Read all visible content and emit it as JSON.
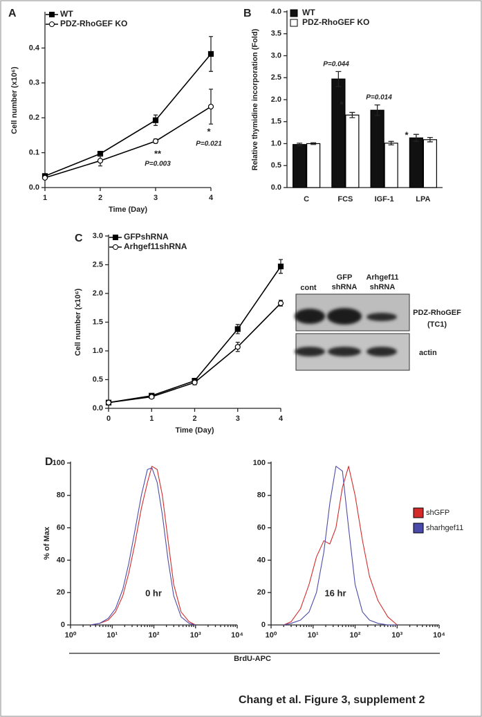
{
  "chart_data": [
    {
      "type": "line",
      "label": "A",
      "xlabel": "Time (Day)",
      "ylabel": "Cell number (x10⁶)",
      "x": [
        1,
        2,
        3,
        4
      ],
      "xlim": [
        1,
        4
      ],
      "xticks": [
        1,
        2,
        3,
        4
      ],
      "ylim": [
        0,
        0.5
      ],
      "yticks": [
        {
          "value": 0,
          "label": "0.0"
        },
        0.1,
        0.2,
        0.3,
        0.4
      ],
      "legend": "upper left",
      "series": [
        {
          "name": "WT",
          "color": "#000000",
          "marker": "square",
          "values": [
            0.033,
            0.097,
            0.193,
            0.383
          ],
          "errors": [
            0.005,
            0.006,
            0.015,
            0.05
          ]
        },
        {
          "name": "PDZ-RhoGEF KO",
          "color": "#ffffff",
          "marker": "circle",
          "values": [
            0.028,
            0.077,
            0.133,
            0.232
          ],
          "errors": [
            0.005,
            0.015,
            0.006,
            0.05
          ]
        }
      ],
      "annotations": [
        "**",
        "P=0.003",
        "*",
        "P=0.021"
      ]
    },
    {
      "type": "bar",
      "label": "B",
      "ylabel": "Relative thymidine incorporation (Fold)",
      "categories": [
        "C",
        "FCS",
        "IGF-1",
        "LPA"
      ],
      "ylim": [
        0,
        4
      ],
      "yticks": [
        {
          "value": 0,
          "label": "0.0"
        },
        0.5,
        {
          "value": 1,
          "label": "1.0"
        },
        1.5,
        {
          "value": 2,
          "label": "2.0"
        },
        2.5,
        {
          "value": 3,
          "label": "3.0"
        },
        3.5,
        {
          "value": 4,
          "label": "4.0"
        }
      ],
      "legend": "upper left",
      "series": [
        {
          "name": "WT",
          "color": "#111111",
          "values": [
            0.98,
            2.47,
            1.76,
            1.13
          ],
          "errors": [
            0.03,
            0.17,
            0.12,
            0.08
          ]
        },
        {
          "name": "PDZ-RhoGEF KO",
          "color": "#ffffff",
          "values": [
            1.0,
            1.65,
            1.01,
            1.09
          ],
          "errors": [
            0.02,
            0.06,
            0.04,
            0.05
          ]
        }
      ],
      "annotations": [
        "P=0.044",
        "*",
        "P=0.014",
        "*"
      ]
    },
    {
      "type": "line",
      "label": "C",
      "xlabel": "Time (Day)",
      "ylabel": "Cell number (x10⁶)",
      "x": [
        0,
        1,
        2,
        3,
        4
      ],
      "xlim": [
        0,
        4
      ],
      "xticks": [
        0,
        1,
        2,
        3,
        4
      ],
      "ylim": [
        0,
        3
      ],
      "yticks": [
        {
          "value": 0,
          "label": "0.0"
        },
        0.5,
        {
          "value": 1,
          "label": "1.0"
        },
        1.5,
        {
          "value": 2,
          "label": "2.0"
        },
        2.5,
        {
          "value": 3,
          "label": "3.0"
        }
      ],
      "legend": "upper left",
      "series": [
        {
          "name": "GFPshRNA",
          "color": "#000000",
          "marker": "square",
          "values": [
            0.1,
            0.22,
            0.48,
            1.38,
            2.47
          ],
          "errors": [
            0.02,
            0.03,
            0.04,
            0.08,
            0.12
          ]
        },
        {
          "name": "Arhgef11shRNA",
          "color": "#ffffff",
          "marker": "circle",
          "values": [
            0.1,
            0.2,
            0.45,
            1.07,
            1.83
          ],
          "errors": [
            0.02,
            0.02,
            0.04,
            0.08,
            0.05
          ]
        }
      ]
    },
    {
      "type": "histogram-line",
      "label": "D",
      "xlabel": "BrdU-APC",
      "ylabel": "% of Max",
      "log_x": true,
      "x": [
        3,
        5,
        8,
        12,
        18,
        25,
        35,
        50,
        70,
        90,
        120,
        160,
        220,
        300,
        450,
        700,
        1000
      ],
      "xlim": [
        1,
        10000
      ],
      "xticks": [
        {
          "value": 1,
          "label": "10⁰"
        },
        {
          "value": 10,
          "label": "10¹"
        },
        {
          "value": 100,
          "label": "10²"
        },
        {
          "value": 1000,
          "label": "10³"
        },
        {
          "value": 10000,
          "label": "10⁴"
        }
      ],
      "ylim": [
        0,
        100
      ],
      "yticks": [
        0,
        20,
        40,
        60,
        80,
        100
      ],
      "series": [
        {
          "name": "shGFP",
          "color": "#d42a2a",
          "values": [
            0,
            1,
            3,
            8,
            18,
            32,
            50,
            72,
            88,
            98,
            96,
            80,
            52,
            25,
            8,
            2,
            0
          ]
        },
        {
          "name": "sharhgef11",
          "color": "#4a4aaa",
          "values": [
            0,
            1,
            4,
            10,
            22,
            38,
            58,
            80,
            96,
            97,
            88,
            68,
            40,
            18,
            5,
            1,
            0
          ]
        }
      ],
      "annotations": [
        "0 hr"
      ]
    },
    {
      "type": "histogram-line",
      "log_x": true,
      "legend": "right",
      "x": [
        2,
        3,
        5,
        8,
        12,
        18,
        25,
        35,
        50,
        70,
        100,
        150,
        220,
        350,
        600,
        1000
      ],
      "xlim": [
        1,
        10000
      ],
      "xticks": [
        {
          "value": 1,
          "label": "10⁰"
        },
        {
          "value": 10,
          "label": "10¹"
        },
        {
          "value": 100,
          "label": "10²"
        },
        {
          "value": 1000,
          "label": "10³"
        },
        {
          "value": 10000,
          "label": "10⁴"
        }
      ],
      "ylim": [
        0,
        100
      ],
      "yticks": [
        0,
        20,
        40,
        60,
        80,
        100
      ],
      "series": [
        {
          "name": "shGFP",
          "color": "#d42a2a",
          "values": [
            0,
            2,
            10,
            25,
            42,
            52,
            50,
            60,
            85,
            98,
            80,
            52,
            30,
            15,
            5,
            0
          ]
        },
        {
          "name": "sharhgef11",
          "color": "#4a4aaa",
          "values": [
            0,
            1,
            3,
            8,
            20,
            45,
            75,
            98,
            95,
            60,
            25,
            8,
            3,
            1,
            0,
            0
          ]
        }
      ],
      "annotations": [
        "16 hr"
      ]
    }
  ],
  "blot": {
    "lanes": [
      [
        "cont"
      ],
      [
        "GFP",
        "shRNA"
      ],
      [
        "Arhgef11",
        "shRNA"
      ]
    ],
    "rows": [
      [
        "PDZ-RhoGEF",
        "(TC1)"
      ],
      [
        "actin"
      ]
    ]
  },
  "caption": "Chang et al. Figure 3, supplement 2"
}
